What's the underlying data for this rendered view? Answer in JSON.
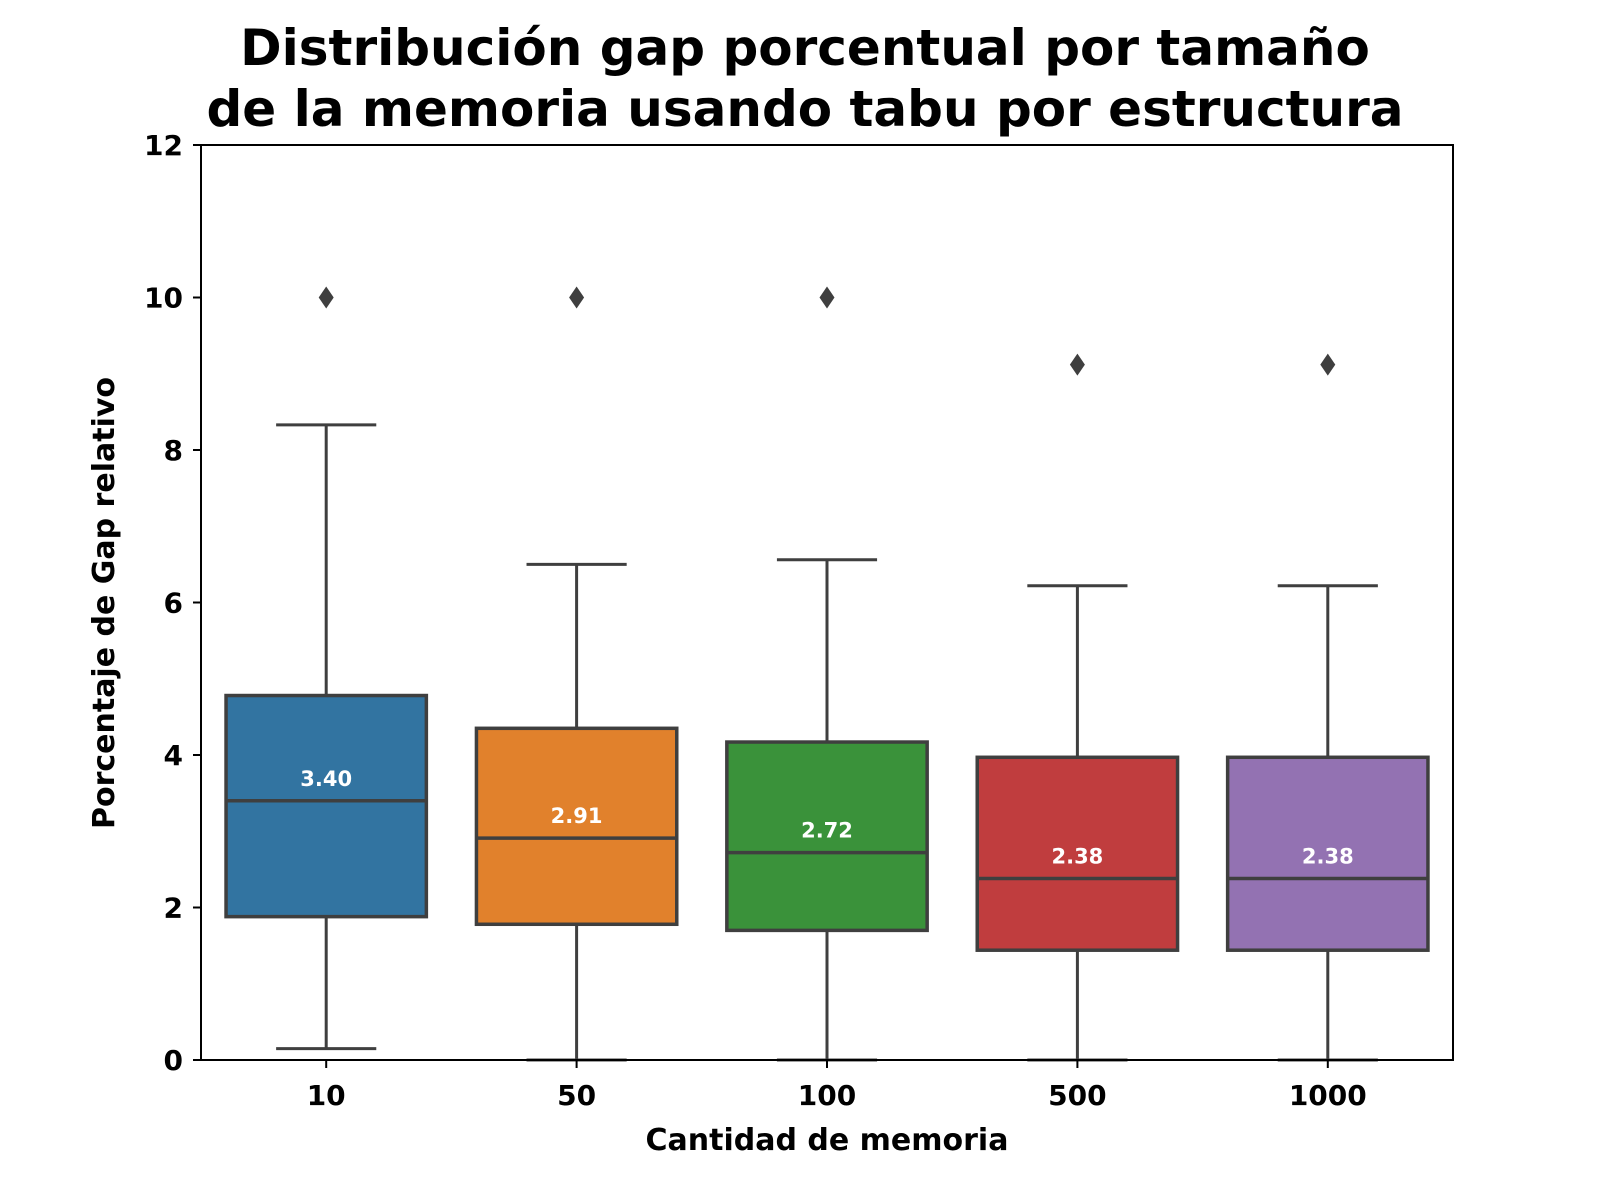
{
  "chart_data": {
    "type": "box",
    "title_lines": [
      "Distribución gap porcentual por tamaño",
      "de la memoria usando tabu por estructura"
    ],
    "xlabel": "Cantidad de memoria",
    "ylabel": "Porcentaje de Gap relativo",
    "ylim": [
      0,
      12
    ],
    "yticks": [
      0,
      2,
      4,
      6,
      8,
      10,
      12
    ],
    "grid": false,
    "categories": [
      "10",
      "50",
      "100",
      "500",
      "1000"
    ],
    "boxes": [
      {
        "category": "10",
        "whisker_low": 0.15,
        "q1": 1.88,
        "median": 3.4,
        "q3": 4.78,
        "whisker_high": 8.33,
        "outliers": [
          10.0
        ],
        "median_label": "3.40",
        "color": "#3274a1"
      },
      {
        "category": "50",
        "whisker_low": 0.0,
        "q1": 1.78,
        "median": 2.91,
        "q3": 4.35,
        "whisker_high": 6.5,
        "outliers": [
          10.0
        ],
        "median_label": "2.91",
        "color": "#e1812c"
      },
      {
        "category": "100",
        "whisker_low": 0.0,
        "q1": 1.7,
        "median": 2.72,
        "q3": 4.17,
        "whisker_high": 6.56,
        "outliers": [
          10.0
        ],
        "median_label": "2.72",
        "color": "#3a923a"
      },
      {
        "category": "500",
        "whisker_low": 0.0,
        "q1": 1.44,
        "median": 2.38,
        "q3": 3.97,
        "whisker_high": 6.22,
        "outliers": [
          9.12
        ],
        "median_label": "2.38",
        "color": "#c03d3e"
      },
      {
        "category": "1000",
        "whisker_low": 0.0,
        "q1": 1.44,
        "median": 2.38,
        "q3": 3.97,
        "whisker_high": 6.22,
        "outliers": [
          9.12
        ],
        "median_label": "2.38",
        "color": "#9372b2"
      }
    ],
    "line_color": "#3f3f3f"
  }
}
